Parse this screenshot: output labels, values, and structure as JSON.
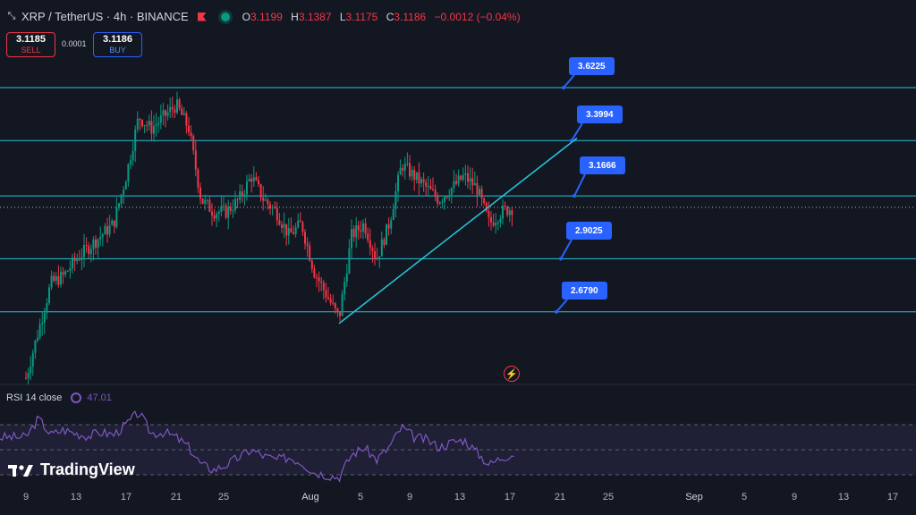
{
  "header": {
    "symbol_title": "XRP / TetherUS · 4h · BINANCE",
    "ohlc": {
      "o_label": "O",
      "o_value": "3.1199",
      "h_label": "H",
      "h_value": "3.1387",
      "l_label": "L",
      "l_value": "3.1175",
      "c_label": "C",
      "c_value": "3.1186",
      "change": "−0.0012 (−0.04%)"
    }
  },
  "trade": {
    "sell_price": "3.1185",
    "sell_label": "SELL",
    "spread": "0.0001",
    "buy_price": "3.1186",
    "buy_label": "BUY"
  },
  "rsi": {
    "label": "RSI 14 close",
    "value": "47.01",
    "color": "#7e57c2"
  },
  "brand": {
    "name": "TradingView"
  },
  "colors": {
    "up": "#089981",
    "down": "#f23645",
    "level": "#26c6da",
    "label_bg": "#2962ff"
  },
  "chart_data": {
    "type": "candlestick",
    "symbol": "XRP/USDT",
    "timeframe": "4h",
    "x_tick_labels": [
      "9",
      "13",
      "17",
      "21",
      "25",
      "Aug",
      "5",
      "9",
      "13",
      "17",
      "21",
      "25",
      "Sep",
      "5",
      "9",
      "13",
      "17"
    ],
    "ylim": [
      2.35,
      3.72
    ],
    "horizontal_levels": [
      {
        "price": 3.6225,
        "label": "3.6225"
      },
      {
        "price": 3.3994,
        "label": "3.3994"
      },
      {
        "price": 3.1666,
        "label": "3.1666"
      },
      {
        "price": 2.9025,
        "label": "2.9025"
      },
      {
        "price": 2.679,
        "label": "2.6790"
      }
    ],
    "current_price": 3.1186,
    "trendline": {
      "from_date": "Aug 3",
      "from_price": 2.63,
      "to_date": "Aug 22",
      "to_price": 3.41
    },
    "price_path": [
      [
        "Jul 9",
        2.4
      ],
      [
        "Jul 10",
        2.6
      ],
      [
        "Jul 11",
        2.8
      ],
      [
        "Jul 12",
        2.83
      ],
      [
        "Jul 13",
        2.9
      ],
      [
        "Jul 14",
        2.95
      ],
      [
        "Jul 15",
        3.0
      ],
      [
        "Jul 16",
        3.05
      ],
      [
        "Jul 17",
        3.25
      ],
      [
        "Jul 18",
        3.5
      ],
      [
        "Jul 19",
        3.45
      ],
      [
        "Jul 20",
        3.5
      ],
      [
        "Jul 21",
        3.55
      ],
      [
        "Jul 22",
        3.45
      ],
      [
        "Jul 23",
        3.15
      ],
      [
        "Jul 24",
        3.1
      ],
      [
        "Jul 25",
        3.1
      ],
      [
        "Jul 26",
        3.15
      ],
      [
        "Jul 27",
        3.25
      ],
      [
        "Jul 28",
        3.15
      ],
      [
        "Jul 29",
        3.1
      ],
      [
        "Jul 30",
        3.0
      ],
      [
        "Jul 31",
        3.05
      ],
      [
        "Aug 1",
        2.85
      ],
      [
        "Aug 2",
        2.75
      ],
      [
        "Aug 3",
        2.65
      ],
      [
        "Aug 4",
        3.0
      ],
      [
        "Aug 5",
        3.05
      ],
      [
        "Aug 6",
        2.9
      ],
      [
        "Aug 7",
        3.05
      ],
      [
        "Aug 8",
        3.3
      ],
      [
        "Aug 9",
        3.25
      ],
      [
        "Aug 10",
        3.2
      ],
      [
        "Aug 11",
        3.15
      ],
      [
        "Aug 12",
        3.2
      ],
      [
        "Aug 13",
        3.25
      ],
      [
        "Aug 14",
        3.2
      ],
      [
        "Aug 15",
        3.05
      ],
      [
        "Aug 16",
        3.1
      ],
      [
        "Aug 17",
        3.12
      ]
    ],
    "rsi_values": [
      [
        "Jul 9",
        60
      ],
      [
        "Jul 10",
        75
      ],
      [
        "Jul 11",
        62
      ],
      [
        "Jul 12",
        66
      ],
      [
        "Jul 13",
        63
      ],
      [
        "Jul 14",
        61
      ],
      [
        "Jul 15",
        64
      ],
      [
        "Jul 16",
        62
      ],
      [
        "Jul 17",
        70
      ],
      [
        "Jul 18",
        80
      ],
      [
        "Jul 19",
        63
      ],
      [
        "Jul 20",
        64
      ],
      [
        "Jul 21",
        60
      ],
      [
        "Jul 22",
        52
      ],
      [
        "Jul 23",
        38
      ],
      [
        "Jul 24",
        34
      ],
      [
        "Jul 25",
        38
      ],
      [
        "Jul 26",
        44
      ],
      [
        "Jul 27",
        50
      ],
      [
        "Jul 28",
        45
      ],
      [
        "Jul 29",
        42
      ],
      [
        "Jul 30",
        44
      ],
      [
        "Jul 31",
        40
      ],
      [
        "Aug 1",
        32
      ],
      [
        "Aug 2",
        30
      ],
      [
        "Aug 3",
        28
      ],
      [
        "Aug 4",
        46
      ],
      [
        "Aug 5",
        52
      ],
      [
        "Aug 6",
        42
      ],
      [
        "Aug 7",
        52
      ],
      [
        "Aug 8",
        68
      ],
      [
        "Aug 9",
        60
      ],
      [
        "Aug 10",
        58
      ],
      [
        "Aug 11",
        52
      ],
      [
        "Aug 12",
        56
      ],
      [
        "Aug 13",
        58
      ],
      [
        "Aug 14",
        48
      ],
      [
        "Aug 15",
        38
      ],
      [
        "Aug 16",
        44
      ],
      [
        "Aug 17",
        47
      ]
    ]
  }
}
